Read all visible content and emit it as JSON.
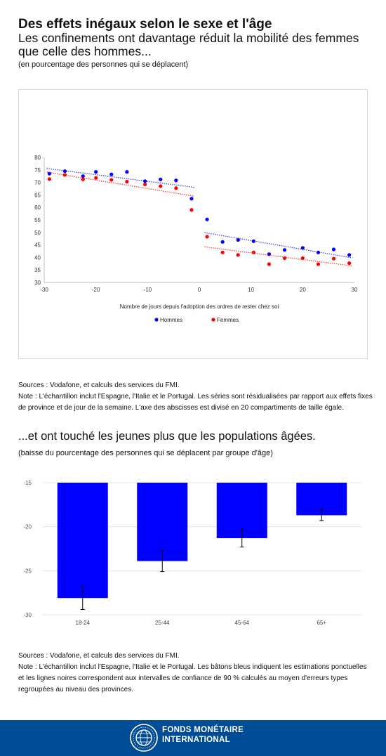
{
  "header": {
    "title": "Des effets inégaux selon le sexe et l'âge",
    "subtitle": "Les confinements ont davantage réduit la mobilité des femmes que celle des hommes...",
    "unit": "(en pourcentage des personnes qui se déplacent)"
  },
  "note1": {
    "sources": "Sources : Vodafone, et calculs des services du FMI.",
    "note": "Note : L'échantillon inclut l'Espagne, l'Italie et le Portugal. Les séries sont résidualisées par rapport aux effets fixes de province et de jour de la semaine. L'axe des abscisses est divisé en 20 compartiments de taille égale."
  },
  "section2": {
    "title": "...et ont touché les jeunes plus que les populations âgées.",
    "unit": "(baisse du pourcentage des personnes qui se déplacent par groupe d'âge)"
  },
  "note2": {
    "sources": "Sources : Vodafone, et calculs des services du FMI.",
    "note": "Note : L'échantillon inclut l'Espagne, l'Italie et le Portugal. Les bâtons bleus indiquent les estimations ponctuelles et les lignes noires correspondent aux intervalles de confiance de 90 % calculés au moyen d'erreurs types regroupées au niveau des provinces."
  },
  "footer": {
    "org_line1": "FONDS MONÉTAIRE",
    "org_line2": "INTERNATIONAL"
  },
  "colors": {
    "hommes": "#0000ff",
    "femmes": "#ff0000",
    "bars": "#0000ff",
    "footer": "#004c97"
  },
  "chart_data": [
    {
      "type": "scatter",
      "xlabel": "Nombre de jours depuis l'adoption des ordres de rester chez soi",
      "ylabel": "",
      "xlim": [
        -30,
        30
      ],
      "ylim": [
        30,
        80
      ],
      "xticks": [
        -30,
        -20,
        -10,
        0,
        10,
        20,
        30
      ],
      "yticks": [
        30,
        35,
        40,
        45,
        50,
        55,
        60,
        65,
        70,
        75,
        80
      ],
      "legend_position": "bottom",
      "trendlines": "dotted, fitted separately before and after day 0",
      "series": [
        {
          "name": "Hommes",
          "color": "#0000ff",
          "points": [
            [
              -29,
              73.5
            ],
            [
              -26,
              74.5
            ],
            [
              -22.5,
              72.5
            ],
            [
              -20,
              74.2
            ],
            [
              -17,
              73.2
            ],
            [
              -14,
              74.2
            ],
            [
              -10.5,
              70.5
            ],
            [
              -7.5,
              71.2
            ],
            [
              -4.5,
              70.8
            ],
            [
              -1.5,
              63.5
            ],
            [
              1.5,
              55.2
            ],
            [
              4.5,
              46.2
            ],
            [
              7.5,
              47
            ],
            [
              10.5,
              46.5
            ],
            [
              13.5,
              41.3
            ],
            [
              16.5,
              43
            ],
            [
              20,
              43.8
            ],
            [
              23,
              42
            ],
            [
              26,
              43.2
            ],
            [
              29,
              41
            ]
          ]
        },
        {
          "name": "Femmes",
          "color": "#ff0000",
          "points": [
            [
              -29,
              71.3
            ],
            [
              -26,
              73
            ],
            [
              -22.5,
              71.2
            ],
            [
              -20,
              71.8
            ],
            [
              -17,
              71
            ],
            [
              -14,
              70.3
            ],
            [
              -10.5,
              69.2
            ],
            [
              -7.5,
              68.5
            ],
            [
              -4.5,
              67.7
            ],
            [
              -1.5,
              59
            ],
            [
              1.5,
              48.3
            ],
            [
              4.5,
              42
            ],
            [
              7.5,
              41
            ],
            [
              10.5,
              42
            ],
            [
              13.5,
              37.3
            ],
            [
              16.5,
              39.7
            ],
            [
              20,
              39.7
            ],
            [
              23,
              37.3
            ],
            [
              26,
              39.5
            ],
            [
              29,
              37.7
            ]
          ]
        }
      ]
    },
    {
      "type": "bar",
      "categories": [
        "18-24",
        "25-44",
        "45-64",
        "65+"
      ],
      "values": [
        -28.1,
        -23.9,
        -21.3,
        -18.7
      ],
      "ci_low": [
        -29.4,
        -25.1,
        -22.3,
        -19.3
      ],
      "ci_high": [
        -26.8,
        -22.7,
        -20.3,
        -18
      ],
      "ylim": [
        -30,
        -15
      ],
      "yticks": [
        -15,
        -20,
        -25,
        -30
      ],
      "color": "#0000ff",
      "xlabel": "",
      "ylabel": ""
    }
  ]
}
